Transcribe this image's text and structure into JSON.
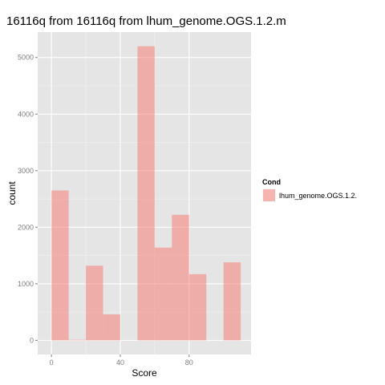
{
  "chart_data": {
    "type": "bar",
    "title": "16116q from  16116q from  lhum_genome.OGS.1.2.m",
    "xlabel": "Score",
    "ylabel": "count",
    "xlim": [
      -8,
      116
    ],
    "ylim": [
      -250,
      5450
    ],
    "x_ticks": [
      0,
      40,
      80
    ],
    "x_tick_labels": [
      "0",
      "40",
      "80"
    ],
    "y_ticks": [
      0,
      1000,
      2000,
      3000,
      4000,
      5000
    ],
    "y_tick_labels": [
      "0",
      "1000",
      "2000",
      "3000",
      "4000",
      "5000"
    ],
    "grid": true,
    "bin_width": 10,
    "bin_edges": [
      0,
      10,
      20,
      30,
      40,
      50,
      60,
      70,
      80,
      90,
      100,
      110
    ],
    "series": [
      {
        "name": "lhum_genome.OGS.1.2.",
        "values": [
          2650,
          10,
          1320,
          460,
          0,
          5200,
          1640,
          2220,
          1170,
          0,
          1380
        ],
        "color": "#F8766D"
      }
    ],
    "legend": {
      "title": "Cond",
      "position": "right",
      "entries": [
        "lhum_genome.OGS.1.2."
      ]
    },
    "colors": {
      "panel": "#E5E5E5",
      "grid_major": "#FFFFFF",
      "grid_minor": "#F2F2F2",
      "bar_fill": "#F8766D",
      "tick_text": "#7F7F7F"
    }
  }
}
